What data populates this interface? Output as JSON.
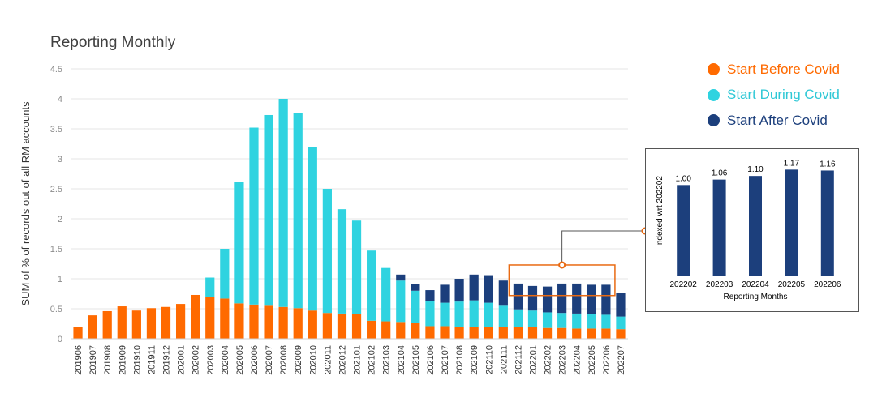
{
  "title": "Reporting Monthly",
  "colors": {
    "before": "#ff6a00",
    "during": "#2fd3e0",
    "after": "#1c3f7c",
    "axis_text": "#8c8c8c",
    "grid": "#e6e6e6",
    "callout": "#e96a12"
  },
  "legend": [
    {
      "label": "Start Before Covid",
      "color": "#ff6a00"
    },
    {
      "label": "Start During Covid",
      "color": "#2fd3e0"
    },
    {
      "label": "Start After Covid",
      "color": "#1c3f7c"
    }
  ],
  "chart_data": [
    {
      "type": "bar",
      "stacked": true,
      "title": "Reporting Monthly",
      "ylabel": "SUM of % of records out of all RM accounts",
      "xlabel": "",
      "ylim": [
        0,
        4.5
      ],
      "yticks": [
        "0",
        "0.5",
        "1",
        "1.5",
        "2",
        "2.5",
        "3",
        "3.5",
        "4",
        "4.5"
      ],
      "grid": true,
      "legend_position": "top-right",
      "categories": [
        "201906",
        "201907",
        "201908",
        "201909",
        "201910",
        "201911",
        "201912",
        "202001",
        "202002",
        "202003",
        "202004",
        "202005",
        "202006",
        "202007",
        "202008",
        "202009",
        "202010",
        "202011",
        "202012",
        "202101",
        "202102",
        "202103",
        "202104",
        "202105",
        "202106",
        "202107",
        "202108",
        "202109",
        "202110",
        "202111",
        "202112",
        "202201",
        "202202",
        "202203",
        "202204",
        "202205",
        "202206",
        "202207"
      ],
      "series": [
        {
          "name": "Start Before Covid",
          "values": [
            0.2,
            0.39,
            0.46,
            0.54,
            0.47,
            0.51,
            0.53,
            0.58,
            0.73,
            0.7,
            0.67,
            0.59,
            0.57,
            0.55,
            0.53,
            0.51,
            0.47,
            0.43,
            0.42,
            0.41,
            0.3,
            0.29,
            0.28,
            0.26,
            0.21,
            0.21,
            0.2,
            0.2,
            0.2,
            0.19,
            0.19,
            0.19,
            0.18,
            0.18,
            0.17,
            0.17,
            0.17,
            0.16
          ]
        },
        {
          "name": "Start During Covid",
          "values": [
            0,
            0,
            0,
            0,
            0,
            0,
            0,
            0,
            0,
            0.32,
            0.83,
            2.03,
            2.95,
            3.18,
            3.47,
            3.26,
            2.72,
            2.07,
            1.74,
            1.56,
            1.17,
            0.89,
            0.69,
            0.54,
            0.42,
            0.39,
            0.42,
            0.44,
            0.4,
            0.36,
            0.3,
            0.28,
            0.26,
            0.25,
            0.25,
            0.24,
            0.23,
            0.21
          ]
        },
        {
          "name": "Start After Covid",
          "values": [
            0,
            0,
            0,
            0,
            0,
            0,
            0,
            0,
            0,
            0,
            0,
            0,
            0,
            0,
            0,
            0,
            0,
            0,
            0,
            0,
            0,
            0,
            0.1,
            0.11,
            0.18,
            0.3,
            0.38,
            0.43,
            0.46,
            0.42,
            0.43,
            0.41,
            0.43,
            0.49,
            0.5,
            0.49,
            0.5,
            0.39
          ]
        }
      ]
    },
    {
      "type": "bar",
      "title": "",
      "ylabel": "Indexed wrt 202202",
      "xlabel": "Reporting Months",
      "categories": [
        "202202",
        "202203",
        "202204",
        "202205",
        "202206"
      ],
      "values": [
        1.0,
        1.06,
        1.1,
        1.17,
        1.16
      ],
      "data_labels": [
        "1.00",
        "1.06",
        "1.10",
        "1.17",
        "1.16"
      ],
      "color": "#1c3f7c"
    }
  ]
}
